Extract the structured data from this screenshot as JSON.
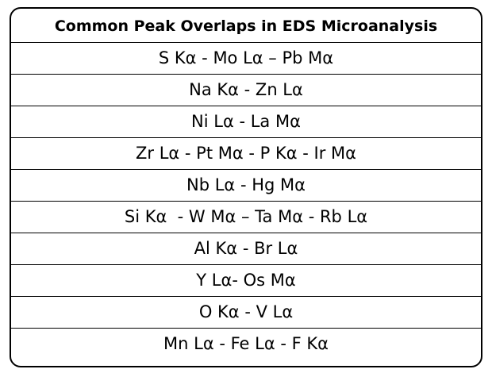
{
  "table": {
    "title": "Common Peak Overlaps in EDS Microanalysis",
    "rows": [
      "S Kα - Mo Lα – Pb Mα",
      "Na Kα - Zn Lα",
      "Ni Lα - La Mα",
      "Zr Lα - Pt Mα - P Kα - Ir Mα",
      "Nb Lα - Hg Mα",
      "Si Kα  - W Mα – Ta Mα - Rb Lα",
      "Al Kα - Br Lα",
      "Y Lα- Os Mα",
      "O Kα - V Lα",
      "Mn Lα - Fe Lα - F Kα"
    ]
  }
}
